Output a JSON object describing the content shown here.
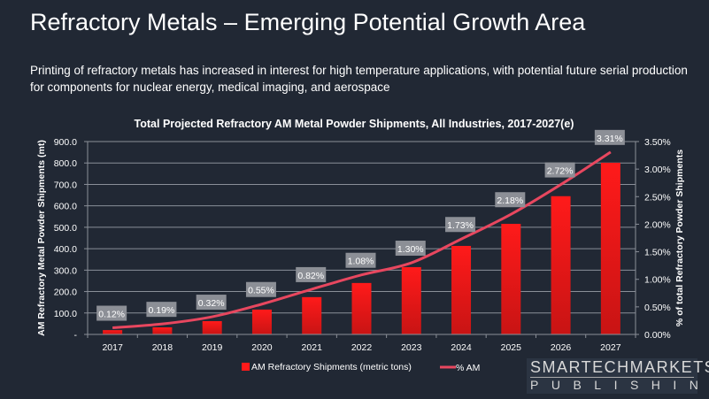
{
  "slide": {
    "title": "Refractory Metals – Emerging Potential Growth Area",
    "subtitle": "Printing of refractory metals has increased in interest for high temperature applications, with potential future serial production for components for nuclear energy, medical imaging, and aerospace"
  },
  "logo": {
    "line1": "SMARTECHMARKETS",
    "line2": "PUBLISHING"
  },
  "chart_data": {
    "type": "bar+line",
    "title": "Total Projected Refractory AM Metal Powder Shipments, All Industries, 2017-2027(e)",
    "categories": [
      "2017",
      "2018",
      "2019",
      "2020",
      "2021",
      "2022",
      "2023",
      "2024",
      "2025",
      "2026",
      "2027"
    ],
    "series": [
      {
        "name": "AM Refractory Shipments (metric tons)",
        "type": "bar",
        "axis": "left",
        "color": "#ff1a1a",
        "values": [
          20,
          33,
          62,
          116,
          174,
          240,
          314,
          413,
          516,
          645,
          801
        ]
      },
      {
        "name": "% AM",
        "type": "line",
        "axis": "right",
        "color": "#e8475f",
        "values": [
          0.12,
          0.19,
          0.32,
          0.55,
          0.82,
          1.08,
          1.3,
          1.73,
          2.18,
          2.72,
          3.31
        ],
        "labels": [
          "0.12%",
          "0.19%",
          "0.32%",
          "0.55%",
          "0.82%",
          "1.08%",
          "1.30%",
          "1.73%",
          "2.18%",
          "2.72%",
          "3.31%"
        ]
      }
    ],
    "ylabel": "AM Refractory Metal Powder Shipments (mt)",
    "y2label": "% of total Refractory Powder Shipments",
    "ylim": [
      0,
      900
    ],
    "y2lim": [
      0,
      3.5
    ],
    "yticks": [
      "-",
      "100.0",
      "200.0",
      "300.0",
      "400.0",
      "500.0",
      "600.0",
      "700.0",
      "800.0",
      "900.0"
    ],
    "y2ticks": [
      "0.00%",
      "0.50%",
      "1.00%",
      "1.50%",
      "2.00%",
      "2.50%",
      "3.00%",
      "3.50%"
    ],
    "grid": true,
    "legend": "bottom"
  }
}
